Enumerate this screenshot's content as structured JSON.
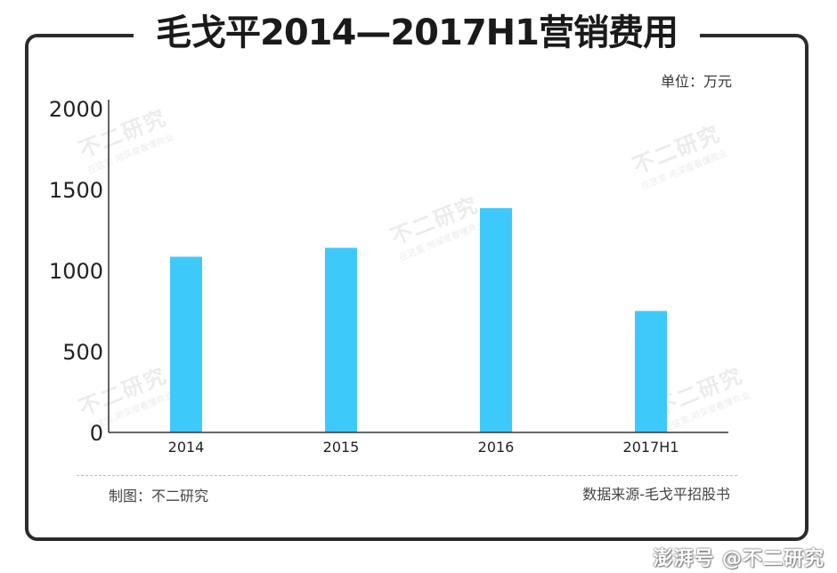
{
  "header": {
    "title": "毛戈平2014—2017H1营销费用",
    "unit": "单位：万元"
  },
  "footer": {
    "made_by": "制图：不二研究",
    "source": "数据来源-毛戈平招股书"
  },
  "watermark": {
    "main": "不二研究",
    "tagline": "在这里 用深度看懂商业"
  },
  "brand": "澎湃号 @不二研究",
  "colors": {
    "bar": "#3ec9fb",
    "axis": "#333333",
    "frame": "#2b2b2b"
  },
  "chart_data": {
    "type": "bar",
    "categories": [
      "2014",
      "2015",
      "2016",
      "2017H1"
    ],
    "values": [
      1085,
      1140,
      1385,
      750
    ],
    "title": "毛戈平2014—2017H1营销费用",
    "xlabel": "",
    "ylabel": "",
    "ylim": [
      0,
      2000
    ],
    "yticks": [
      0,
      500,
      1000,
      1500,
      2000
    ],
    "grid": false,
    "legend": "none"
  }
}
